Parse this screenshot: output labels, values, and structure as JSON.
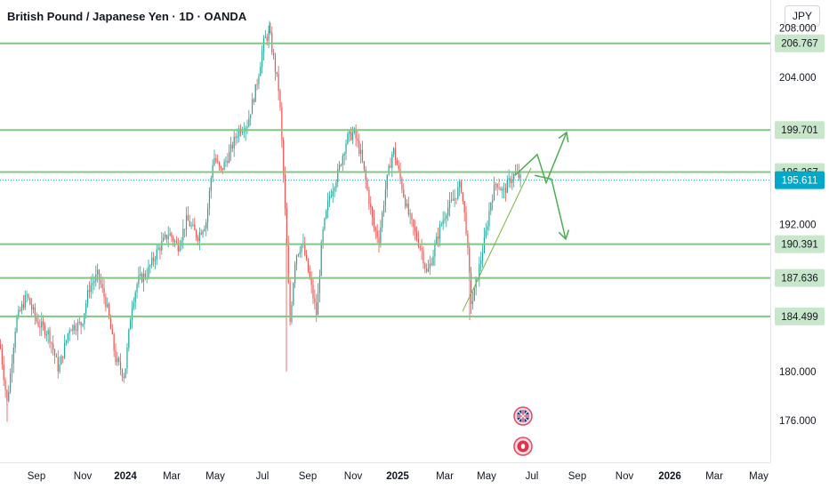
{
  "header": {
    "title": "British Pound / Japanese Yen · 1D · OANDA",
    "currency_button": "JPY"
  },
  "chart_data": {
    "type": "candlestick",
    "symbol": "GBPJPY",
    "timeframe": "1D",
    "ylim": [
      172.6,
      210.3
    ],
    "y_ticks": [
      "208.000",
      "204.000",
      "192.000",
      "180.000",
      "176.000"
    ],
    "x_ticks": [
      "Sep",
      "Nov",
      "2024",
      "Mar",
      "May",
      "Jul",
      "Sep",
      "Nov",
      "2025",
      "Mar",
      "May",
      "Jul",
      "Sep",
      "Nov",
      "2026",
      "Mar",
      "May"
    ],
    "horizontal_levels": [
      {
        "value": 206.767,
        "label": "206.767"
      },
      {
        "value": 199.701,
        "label": "199.701"
      },
      {
        "value": 196.267,
        "label": "196.267"
      },
      {
        "value": 190.391,
        "label": "190.391"
      },
      {
        "value": 187.636,
        "label": "187.636"
      },
      {
        "value": 184.499,
        "label": "184.499"
      }
    ],
    "current_price": {
      "value": 195.611,
      "label": "195.611"
    },
    "price_path": [
      [
        0,
        182.2
      ],
      [
        8,
        177.4
      ],
      [
        18,
        184.1
      ],
      [
        30,
        186.2
      ],
      [
        42,
        184.0
      ],
      [
        55,
        183.1
      ],
      [
        66,
        180.1
      ],
      [
        78,
        183.6
      ],
      [
        92,
        183.9
      ],
      [
        100,
        186.8
      ],
      [
        110,
        187.9
      ],
      [
        120,
        185.4
      ],
      [
        130,
        181.0
      ],
      [
        140,
        179.6
      ],
      [
        148,
        185.4
      ],
      [
        155,
        187.4
      ],
      [
        165,
        188.0
      ],
      [
        178,
        190.0
      ],
      [
        190,
        191.3
      ],
      [
        200,
        190.2
      ],
      [
        210,
        192.4
      ],
      [
        222,
        191.0
      ],
      [
        232,
        192.3
      ],
      [
        240,
        197.6
      ],
      [
        248,
        196.3
      ],
      [
        258,
        197.8
      ],
      [
        268,
        199.7
      ],
      [
        278,
        200.2
      ],
      [
        288,
        203.2
      ],
      [
        297,
        207.0
      ],
      [
        303,
        207.6
      ],
      [
        308,
        205.3
      ],
      [
        314,
        202.7
      ],
      [
        318,
        197.1
      ],
      [
        322,
        190.8
      ],
      [
        326,
        184.0
      ],
      [
        332,
        189.4
      ],
      [
        340,
        190.5
      ],
      [
        348,
        187.6
      ],
      [
        356,
        184.6
      ],
      [
        362,
        190.9
      ],
      [
        370,
        194.2
      ],
      [
        380,
        196.2
      ],
      [
        390,
        199.0
      ],
      [
        398,
        199.5
      ],
      [
        406,
        197.6
      ],
      [
        414,
        194.4
      ],
      [
        420,
        191.8
      ],
      [
        426,
        190.8
      ],
      [
        434,
        195.2
      ],
      [
        442,
        198.2
      ],
      [
        450,
        195.7
      ],
      [
        458,
        193.1
      ],
      [
        466,
        191.4
      ],
      [
        474,
        189.9
      ],
      [
        480,
        187.9
      ],
      [
        486,
        189.3
      ],
      [
        494,
        191.6
      ],
      [
        502,
        193.2
      ],
      [
        510,
        194.0
      ],
      [
        518,
        195.3
      ],
      [
        524,
        191.7
      ],
      [
        530,
        185.3
      ],
      [
        538,
        188.2
      ],
      [
        546,
        191.2
      ],
      [
        552,
        194.0
      ],
      [
        558,
        195.5
      ],
      [
        566,
        194.6
      ],
      [
        574,
        195.7
      ],
      [
        580,
        196.2
      ],
      [
        586,
        195.6
      ]
    ],
    "annotations": {
      "trendline": {
        "from": [
          520,
          184.9
        ],
        "to": [
          597,
          196.6
        ]
      },
      "projection_up": [
        [
          579,
          196.0
        ],
        [
          604,
          197.7
        ],
        [
          614,
          195.4
        ],
        [
          637,
          199.5
        ]
      ],
      "projection_down": [
        [
          601,
          196.0
        ],
        [
          620,
          195.7
        ],
        [
          636,
          190.8
        ]
      ]
    },
    "grid": false,
    "colors": {
      "up": "#26a69a",
      "down": "#ef5350",
      "level_line": "#81c784",
      "projection": "#4caf50",
      "current_price_badge": "#00a8c9",
      "axis_text": "#131722"
    }
  },
  "markers": {
    "event_1": "uk-flag-icon",
    "event_2": "dividend-icon"
  }
}
